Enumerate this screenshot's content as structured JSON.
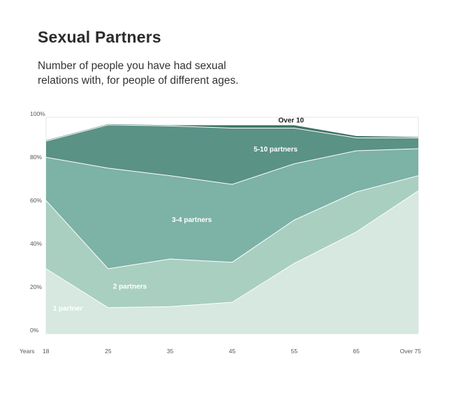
{
  "header": {
    "title": "Sexual Partners",
    "subtitle": "Number of people you have had sexual relations with, for people of different ages."
  },
  "chart_data": {
    "type": "area",
    "stacked": true,
    "categories": [
      "18",
      "25",
      "35",
      "45",
      "55",
      "65",
      "Over 75"
    ],
    "x_axis_label": "Years",
    "y_ticks": [
      "0%",
      "20%",
      "40%",
      "60%",
      "80%",
      "100%"
    ],
    "ylim": [
      0,
      100
    ],
    "series": [
      {
        "name": "1 partner",
        "values": [
          30,
          12,
          12.5,
          14.5,
          32.5,
          47,
          66
        ],
        "color": "#d6e8e0"
      },
      {
        "name": "2 partners",
        "values": [
          31.5,
          18,
          22,
          18.5,
          20,
          18.5,
          7
        ],
        "color": "#a9cfc1"
      },
      {
        "name": "3-4 partners",
        "values": [
          20,
          46.5,
          38.5,
          36,
          26,
          19,
          12.5
        ],
        "color": "#7db2a6"
      },
      {
        "name": "5-10 partners",
        "values": [
          7.5,
          20,
          23,
          26,
          16.5,
          6,
          5
        ],
        "color": "#5b9286"
      },
      {
        "name": "Over 10",
        "values": [
          0.5,
          0.5,
          0.5,
          1.5,
          1.5,
          1,
          0.5
        ],
        "color": "#3f7466"
      }
    ],
    "grid": false
  }
}
